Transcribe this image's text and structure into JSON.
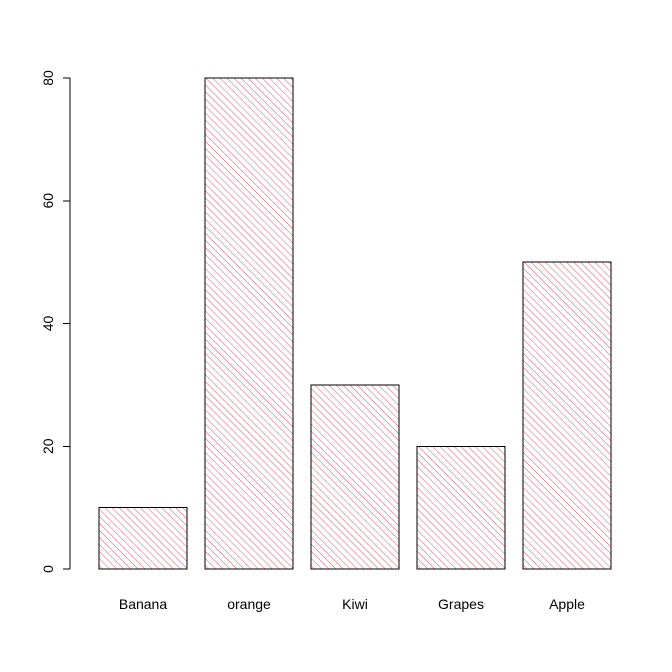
{
  "chart_data": {
    "type": "bar",
    "title": "",
    "xlabel": "",
    "ylabel": "",
    "categories": [
      "Banana",
      "orange",
      "Kiwi",
      "Grapes",
      "Apple"
    ],
    "values": [
      10,
      80,
      30,
      20,
      50
    ],
    "ylim": [
      0,
      80
    ],
    "yticks": [
      0,
      20,
      40,
      60,
      80
    ],
    "grid": false,
    "legend": "none",
    "bar_fill": "hatched",
    "colors": {
      "hatch": "#DF536B",
      "outline": "#000000",
      "axis": "#000000",
      "background": "#FFFFFF"
    }
  }
}
